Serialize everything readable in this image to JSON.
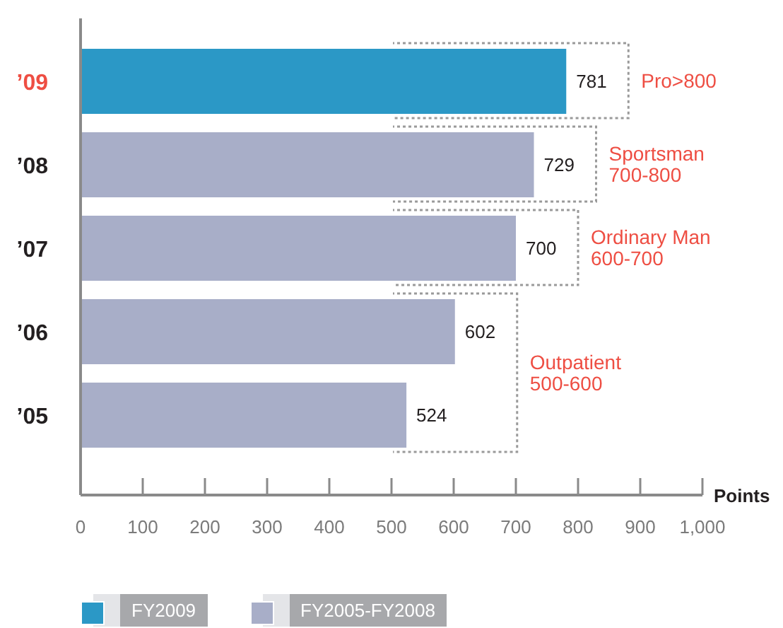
{
  "chart_data": {
    "type": "bar",
    "orientation": "horizontal",
    "stacked": true,
    "categories": [
      "’09",
      "’08",
      "’07",
      "’06",
      "’05"
    ],
    "series": [
      {
        "name": "FY2009",
        "color": "#2b98c6",
        "values": [
          781,
          null,
          null,
          null,
          null
        ]
      },
      {
        "name": "FY2005-FY2008",
        "color": "#a8aec8",
        "values": [
          null,
          729,
          700,
          602,
          524
        ]
      }
    ],
    "xlabel": "Points",
    "xlim": [
      0,
      1000
    ],
    "xticks": [
      0,
      100,
      200,
      300,
      400,
      500,
      600,
      700,
      800,
      900,
      {
        "value": 1000,
        "label": "1,000"
      }
    ],
    "grid": false,
    "legend": "bottom left",
    "data_labels": true,
    "annotations": [
      "Pro>800",
      "Sportsman\n700-800",
      "Ordinary Man\n600-700",
      "Outpatient\n500-600"
    ]
  }
}
